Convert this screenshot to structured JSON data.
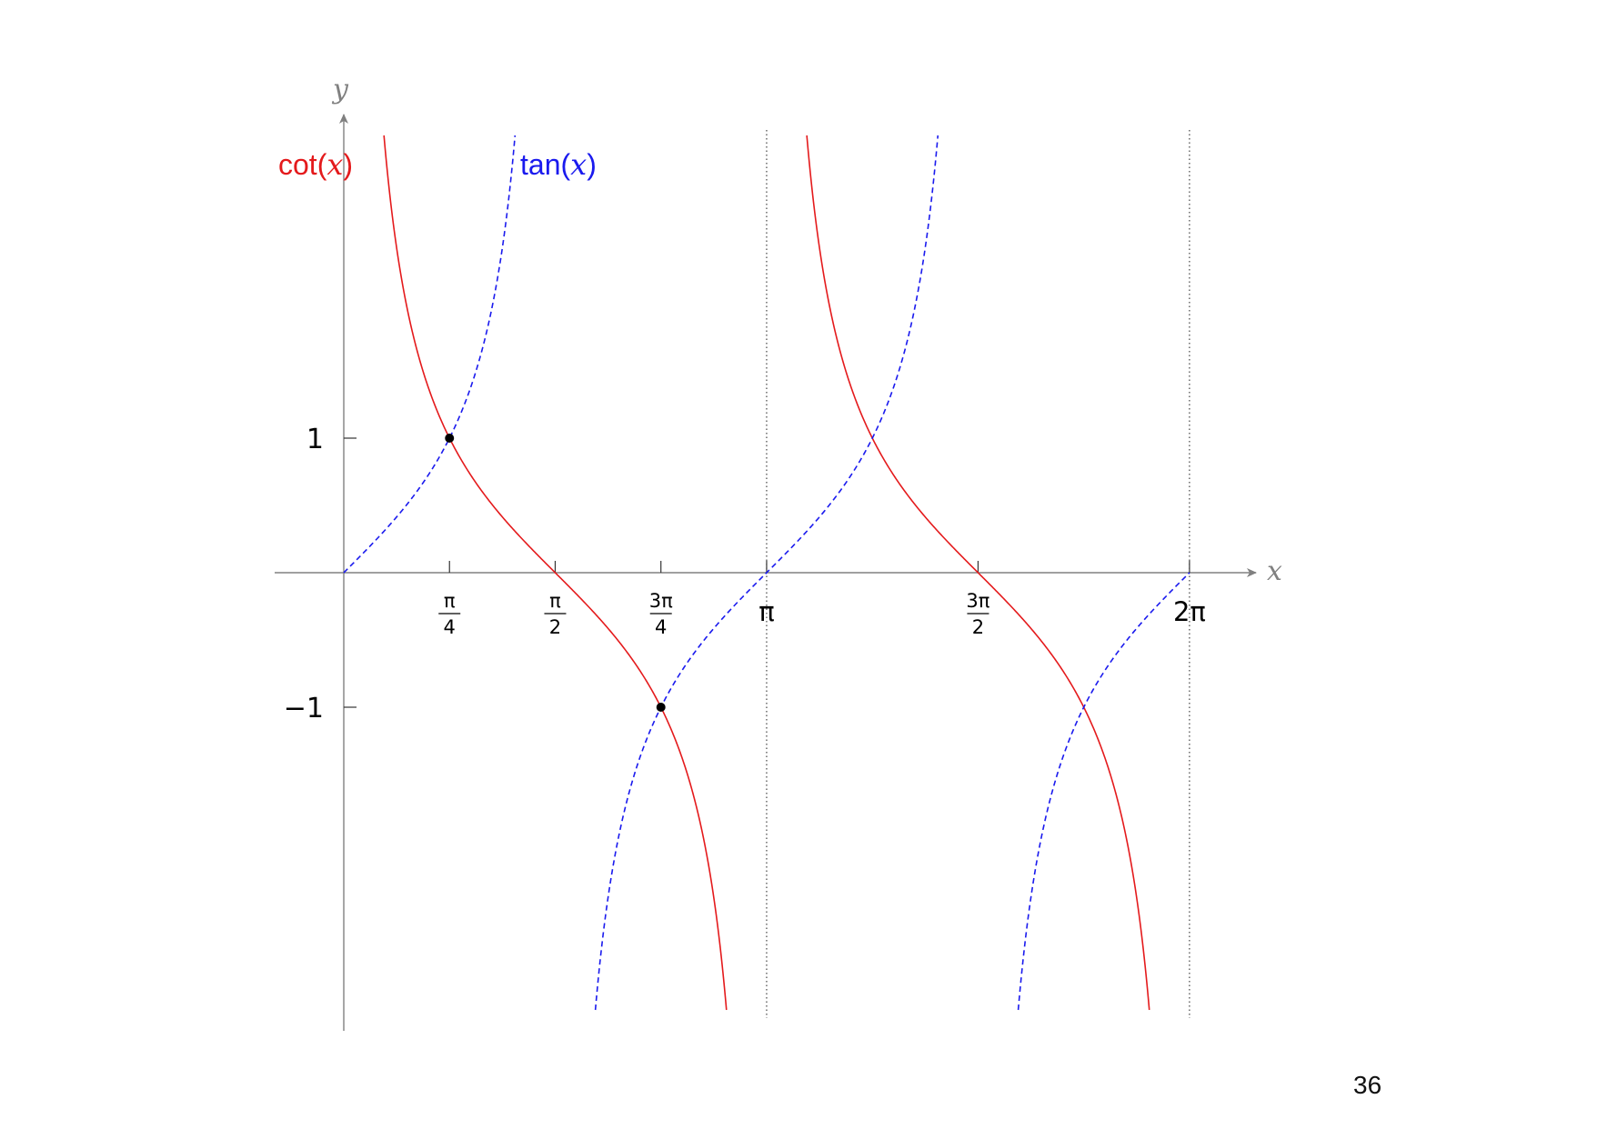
{
  "page": {
    "number": "36"
  },
  "chart_data": {
    "type": "line",
    "title": "",
    "xlabel": "x",
    "ylabel": "y",
    "xlim": [
      -0.25,
      6.95
    ],
    "ylim": [
      -3.4,
      3.3
    ],
    "x_ticks": [
      {
        "value": 0.7853981634,
        "num": "π",
        "den": "4"
      },
      {
        "value": 1.5707963268,
        "num": "π",
        "den": "2"
      },
      {
        "value": 2.3561944902,
        "num": "3π",
        "den": "4"
      },
      {
        "value": 3.1415926536,
        "text": "π"
      },
      {
        "value": 4.7123889804,
        "num": "3π",
        "den": "2"
      },
      {
        "value": 6.2831853072,
        "text": "2π"
      }
    ],
    "y_ticks": [
      {
        "value": 1,
        "text": "1"
      },
      {
        "value": -1,
        "text": "−1"
      }
    ],
    "asymptotes_x": [
      3.1415926536,
      6.2831853072
    ],
    "series": [
      {
        "name": "cot(x)",
        "func": "cot",
        "color": "#e41a1c",
        "style": "solid",
        "label": {
          "fn": "cot",
          "var": "x"
        }
      },
      {
        "name": "tan(x)",
        "func": "tan",
        "color": "#1a1aee",
        "style": "dashed",
        "label": {
          "fn": "tan",
          "var": "x"
        }
      }
    ],
    "points": [
      {
        "x": 0.7853981634,
        "y": 1
      },
      {
        "x": 2.3561944902,
        "y": -1
      }
    ],
    "curve_y_range": [
      -3.25,
      3.25
    ]
  }
}
